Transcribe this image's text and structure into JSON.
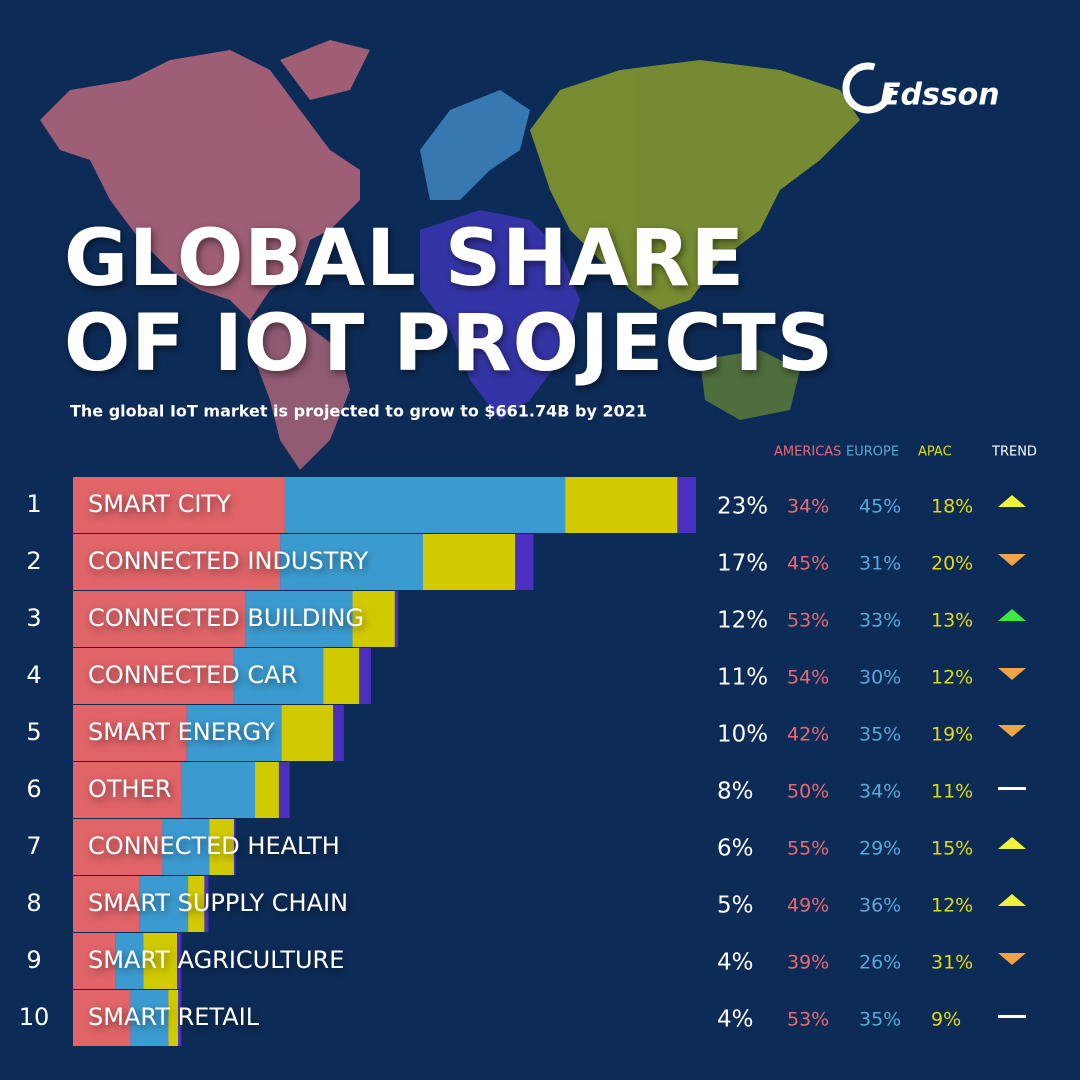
{
  "chart_data": {
    "type": "bar",
    "orientation": "horizontal",
    "stacked": true,
    "logo": "Edsson",
    "title": [
      "GLOBAL SHARE",
      "OF IOT PROJECTS"
    ],
    "subtitle": "The global IoT market is projected to grow to $661.74B by 2021",
    "ranks": [
      1,
      2,
      3,
      4,
      5,
      6,
      7,
      8,
      9,
      10
    ],
    "categories": [
      "SMART CITY",
      "CONNECTED INDUSTRY",
      "CONNECTED BUILDING",
      "CONNECTED CAR",
      "SMART ENERGY",
      "OTHER",
      "CONNECTED HEALTH",
      "SMART SUPPLY CHAIN",
      "SMART AGRICULTURE",
      "SMART RETAIL"
    ],
    "values": [
      23,
      17,
      12,
      11,
      10,
      8,
      6,
      5,
      4,
      4
    ],
    "value_labels": [
      "23%",
      "17%",
      "12%",
      "11%",
      "10%",
      "8%",
      "6%",
      "5%",
      "4%",
      "4%"
    ],
    "color": "#4a2fc0",
    "series": [
      {
        "name": "AMERICAS",
        "color": "#e06468",
        "text_color": "#ea6a70",
        "values": [
          34,
          45,
          53,
          54,
          42,
          50,
          55,
          49,
          39,
          53
        ],
        "value_labels": [
          "34%",
          "45%",
          "53%",
          "54%",
          "42%",
          "50%",
          "55%",
          "49%",
          "39%",
          "53%"
        ]
      },
      {
        "name": "EUROPE",
        "color": "#3b9bd0",
        "text_color": "#5aa8d8",
        "values": [
          45,
          31,
          33,
          30,
          35,
          34,
          29,
          36,
          26,
          35
        ],
        "value_labels": [
          "45%",
          "31%",
          "33%",
          "30%",
          "35%",
          "34%",
          "29%",
          "36%",
          "26%",
          "35%"
        ]
      },
      {
        "name": "APAC",
        "color": "#d2ca00",
        "text_color": "#e2da10",
        "values": [
          18,
          20,
          13,
          12,
          19,
          11,
          15,
          12,
          31,
          9
        ],
        "value_labels": [
          "18%",
          "20%",
          "13%",
          "12%",
          "19%",
          "11%",
          "15%",
          "12%",
          "31%",
          "9%"
        ]
      }
    ],
    "trend_header": "TREND",
    "trends": [
      "up",
      "down",
      "up",
      "down",
      "down",
      "flat",
      "up",
      "up",
      "down",
      "flat"
    ],
    "trend_colors": [
      "#f2f23a",
      "#f0a448",
      "#3ee83e",
      "#f0a448",
      "#f0a448",
      "#ffffff",
      "#f2f23a",
      "#f2f23a",
      "#f0a448",
      "#ffffff"
    ]
  }
}
